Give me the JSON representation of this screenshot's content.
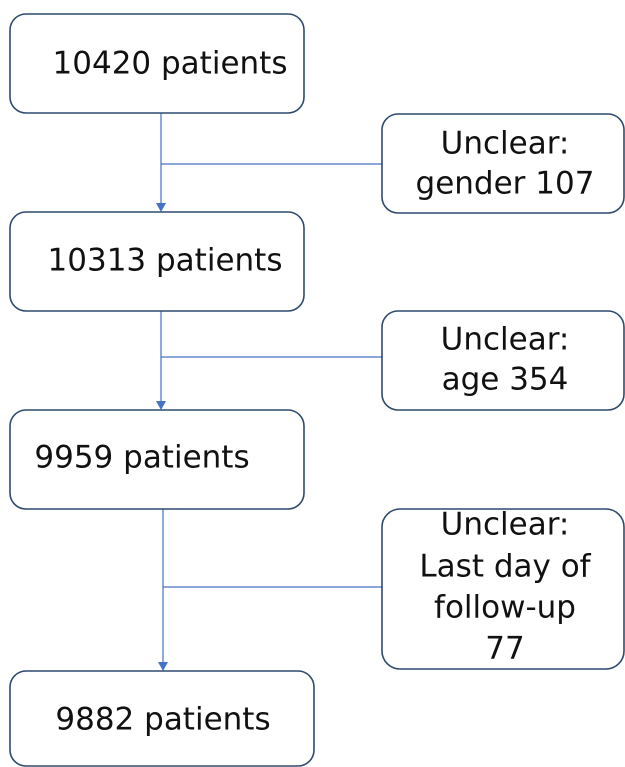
{
  "nodes": [
    {
      "label": "10420 patients"
    },
    {
      "label": "10313 patients"
    },
    {
      "label": "9959 patients"
    },
    {
      "label": "9882 patients"
    }
  ],
  "exclusions": [
    {
      "lines": [
        "Unclear:",
        "gender 107"
      ]
    },
    {
      "lines": [
        "Unclear:",
        "age 354"
      ]
    },
    {
      "lines": [
        "Unclear:",
        "Last day of",
        "follow-up",
        "77"
      ]
    }
  ]
}
